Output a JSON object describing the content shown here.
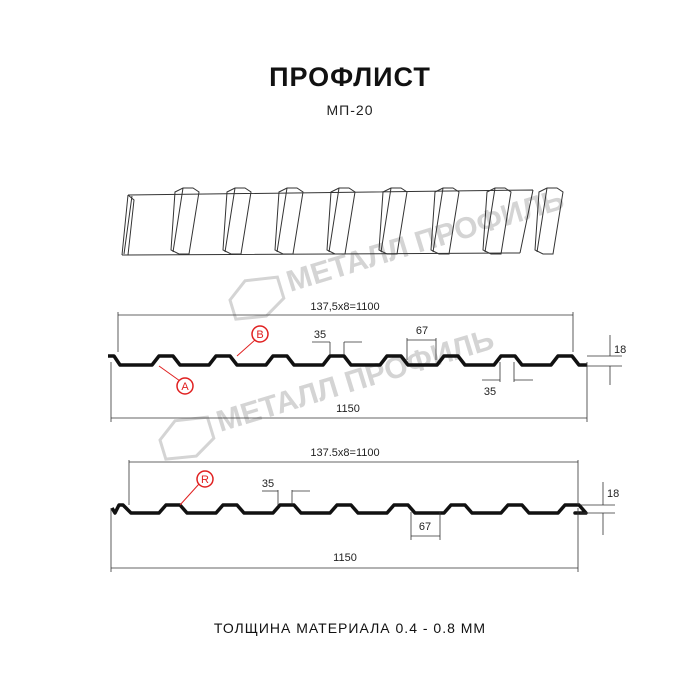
{
  "title": "ПРОФЛИСТ",
  "subtitle": "МП-20",
  "footer": "ТОЛЩИНА МАТЕРИАЛА 0.4 - 0.8 ММ",
  "watermark": "МЕТАЛЛ ПРОФИЛЬ",
  "colors": {
    "profile": "#111111",
    "marker": "#e02020",
    "dimension": "#333333",
    "watermark": "#d4d4d4"
  },
  "profile_a": {
    "pitch_label": "137,5x8=1100",
    "width_label": "1150",
    "top_label": "35",
    "bottom_label": "35",
    "rib_label": "67",
    "height_label": "18",
    "marker_a": "A",
    "marker_b": "B"
  },
  "profile_r": {
    "pitch_label": "137.5x8=1100",
    "width_label": "1150",
    "top_label": "35",
    "rib_label": "67",
    "height_label": "18",
    "marker_r": "R"
  }
}
